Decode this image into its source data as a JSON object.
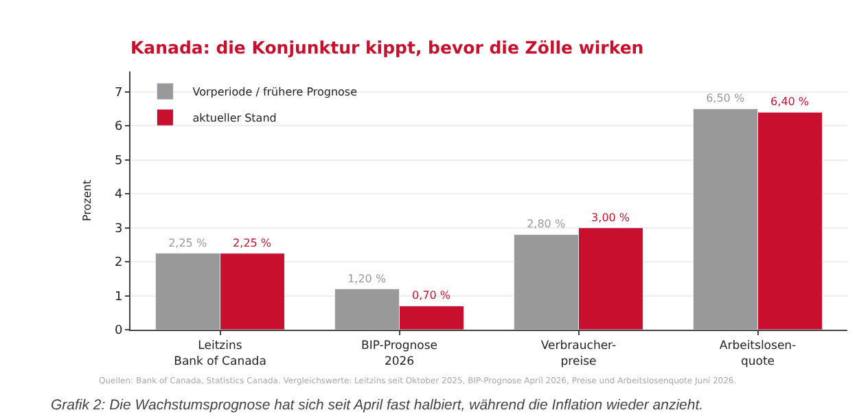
{
  "chart_data": {
    "type": "bar",
    "title": "Kanada: die Konjunktur kippt, bevor die Zölle wirken",
    "ylabel": "Prozent",
    "categories": [
      "Leitzins\nBank of Canada",
      "BIP-Prognose\n2026",
      "Verbraucher-\npreise",
      "Arbeitslosen-\nquote"
    ],
    "series": [
      {
        "name": "Vorperiode / frühere Prognose",
        "color": "#999999",
        "values": [
          2.25,
          1.2,
          2.8,
          6.5
        ],
        "value_labels": [
          "2,25 %",
          "1,20 %",
          "2,80 %",
          "6,50 %"
        ]
      },
      {
        "name": "aktueller Stand",
        "color": "#c8102e",
        "values": [
          2.25,
          0.7,
          3.0,
          6.4
        ],
        "value_labels": [
          "2,25 %",
          "0,70 %",
          "3,00 %",
          "6,40 %"
        ]
      }
    ],
    "ylim": [
      0,
      7.6
    ],
    "yticks": [
      0,
      1,
      2,
      3,
      4,
      5,
      6,
      7
    ],
    "grid": "y",
    "legend": "top left",
    "annotations": [
      "Quellen: Bank of Canada, Statistics Canada. Vergleichswerte: Leitzins seit Oktober 2025, BIP-Prognose April 2026, Preise und Arbeitslosenquote Juni 2026.",
      "Grafik 2: Die Wachstumsprognose hat sich seit April fast halbiert, während die Inflation wieder anzieht."
    ]
  }
}
